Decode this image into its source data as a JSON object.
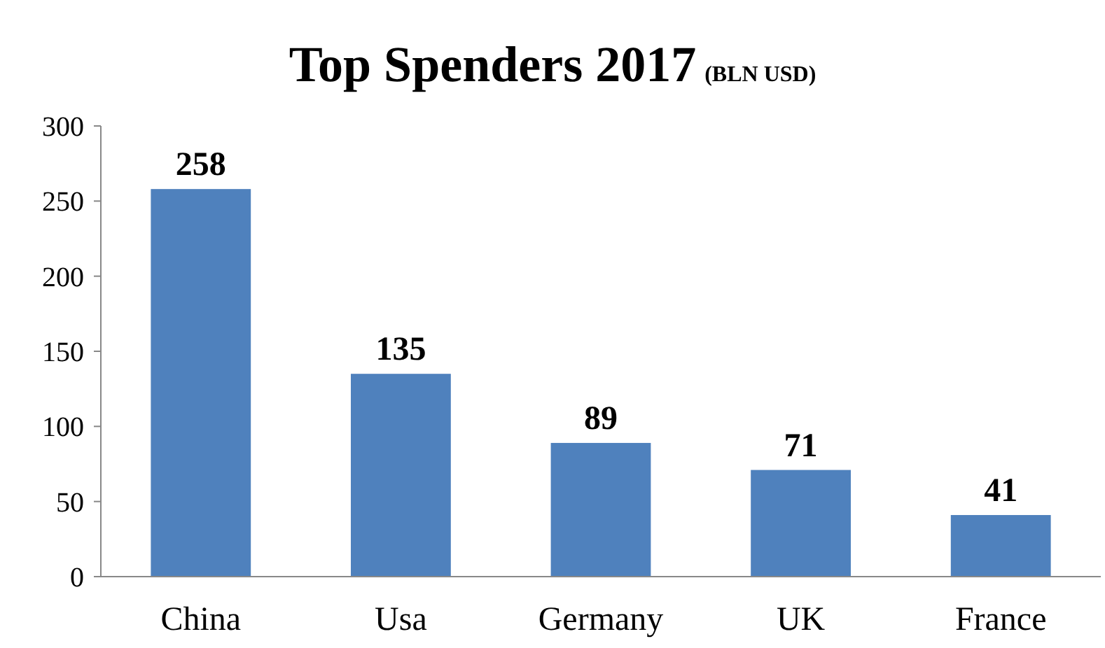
{
  "chart_data": {
    "type": "bar",
    "title": "Top Spenders 2017",
    "subtitle": "(BLN USD)",
    "categories": [
      "China",
      "Usa",
      "Germany",
      "UK",
      "France"
    ],
    "values": [
      258,
      135,
      89,
      71,
      41
    ],
    "color": "#4f81bd",
    "ylim": [
      0,
      300
    ],
    "yticks": [
      0,
      50,
      100,
      150,
      200,
      250,
      300
    ],
    "grid": false,
    "data_labels": true
  }
}
